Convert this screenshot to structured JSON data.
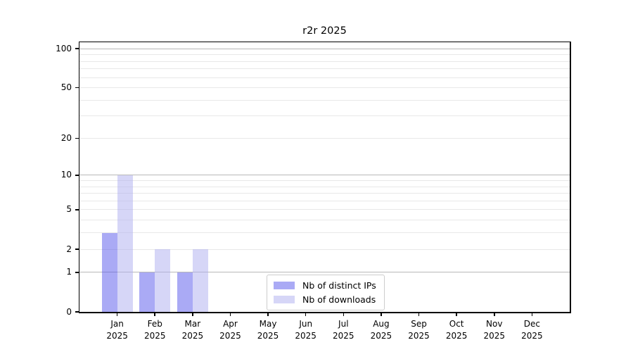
{
  "chart_data": {
    "type": "bar",
    "title": "r2r 2025",
    "categories": [
      "Jan",
      "Feb",
      "Mar",
      "Apr",
      "May",
      "Jun",
      "Jul",
      "Aug",
      "Sep",
      "Oct",
      "Nov",
      "Dec"
    ],
    "category_year": "2025",
    "series": [
      {
        "name": "Nb of distinct IPs",
        "color": "rgba(85,85,235,0.5)",
        "values": [
          3,
          1,
          1,
          0,
          0,
          0,
          0,
          0,
          0,
          0,
          0,
          0
        ]
      },
      {
        "name": "Nb of downloads",
        "color": "rgba(173,173,239,0.5)",
        "values": [
          10,
          2,
          2,
          0,
          0,
          0,
          0,
          0,
          0,
          0,
          0,
          0
        ]
      }
    ],
    "xlabel": "",
    "ylabel": "",
    "yscale": "log1p",
    "ylim": [
      0,
      110
    ],
    "yticks": [
      0,
      1,
      2,
      5,
      10,
      20,
      50,
      100
    ],
    "major_gridlines": [
      1,
      10,
      100
    ],
    "minor_gridlines": [
      2,
      3,
      4,
      5,
      6,
      7,
      8,
      9,
      20,
      30,
      40,
      50,
      60,
      70,
      80,
      90
    ],
    "grid": "on",
    "legend_position": "inside-lower-center",
    "colors": {
      "major_grid": "#b8b8b8",
      "minor_grid": "#e8e8e8",
      "spine": "#000000",
      "background": "#ffffff"
    }
  }
}
